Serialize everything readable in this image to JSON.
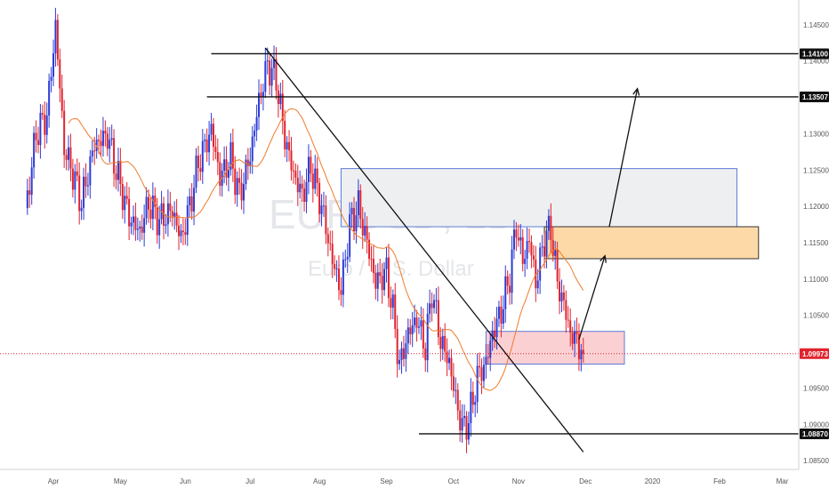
{
  "watermark": {
    "symbol": "EURUSD, 1D",
    "name": "Euro / U.S. Dollar"
  },
  "colors": {
    "up": "#2b3cd6",
    "down": "#e0232e",
    "ma": "#ef7a2a",
    "price_line": "#e0232e",
    "supply_zone": "#fdd9a8",
    "demand_zone": "#fbd0d3",
    "range_zone": "#eeeff1"
  },
  "chart_data": {
    "type": "candlestick",
    "symbol": "EURUSD",
    "timeframe": "1D",
    "title": "Euro / U.S. Dollar",
    "x_labels": [
      "Apr",
      "May",
      "Jun",
      "Jul",
      "Aug",
      "Sep",
      "Oct",
      "Nov",
      "Dec",
      "2020",
      "Feb",
      "Mar"
    ],
    "x_label_days": [
      13,
      44,
      74,
      104,
      136,
      167,
      198,
      228,
      259,
      290,
      321,
      350
    ],
    "y_ticks": [
      "1.14500",
      "1.14000",
      "1.13500",
      "1.13000",
      "1.12500",
      "1.12000",
      "1.11500",
      "1.11000",
      "1.10500",
      "1.10000",
      "1.09500",
      "1.09000",
      "1.08500"
    ],
    "ylim": [
      1.0838,
      1.1484
    ],
    "last_price": "1.09973",
    "levels": [
      {
        "price": 1.141,
        "label": "1.14100",
        "x_from_day": 86
      },
      {
        "price": 1.13507,
        "label": "1.13507",
        "x_from_day": 84
      },
      {
        "price": 1.0887,
        "label": "1.08870",
        "x_from_day": 182
      }
    ],
    "zones": [
      {
        "name": "range",
        "day_from": 146,
        "day_to": 329,
        "price_from": 1.1172,
        "price_to": 1.1252
      },
      {
        "name": "supply",
        "day_from": 240,
        "day_to": 339,
        "price_from": 1.1128,
        "price_to": 1.1172
      },
      {
        "name": "demand",
        "day_from": 213,
        "day_to": 277,
        "price_from": 1.0983,
        "price_to": 1.1028
      }
    ],
    "trendline": {
      "from": {
        "day": 111,
        "price": 1.1418
      },
      "to": {
        "day": 258,
        "price": 1.0862
      }
    },
    "arrows": [
      {
        "from": {
          "day": 256,
          "price": 1.1017
        },
        "to": {
          "day": 268,
          "price": 1.1132
        }
      },
      {
        "from": {
          "day": 270,
          "price": 1.1172
        },
        "to": {
          "day": 283,
          "price": 1.1362
        }
      }
    ],
    "series_keypoints": [
      {
        "day": 0,
        "price": 1.119
      },
      {
        "day": 5,
        "price": 1.13
      },
      {
        "day": 10,
        "price": 1.1325
      },
      {
        "day": 14,
        "price": 1.1448
      },
      {
        "day": 18,
        "price": 1.128
      },
      {
        "day": 22,
        "price": 1.1245
      },
      {
        "day": 26,
        "price": 1.1205
      },
      {
        "day": 32,
        "price": 1.1285
      },
      {
        "day": 38,
        "price": 1.1298
      },
      {
        "day": 42,
        "price": 1.125
      },
      {
        "day": 48,
        "price": 1.1185
      },
      {
        "day": 53,
        "price": 1.1165
      },
      {
        "day": 57,
        "price": 1.1205
      },
      {
        "day": 62,
        "price": 1.118
      },
      {
        "day": 68,
        "price": 1.1195
      },
      {
        "day": 72,
        "price": 1.1155
      },
      {
        "day": 76,
        "price": 1.12
      },
      {
        "day": 80,
        "price": 1.126
      },
      {
        "day": 86,
        "price": 1.1305
      },
      {
        "day": 90,
        "price": 1.124
      },
      {
        "day": 95,
        "price": 1.1265
      },
      {
        "day": 99,
        "price": 1.1215
      },
      {
        "day": 104,
        "price": 1.127
      },
      {
        "day": 108,
        "price": 1.1345
      },
      {
        "day": 112,
        "price": 1.1395
      },
      {
        "day": 116,
        "price": 1.1375
      },
      {
        "day": 120,
        "price": 1.1295
      },
      {
        "day": 124,
        "price": 1.1245
      },
      {
        "day": 128,
        "price": 1.1215
      },
      {
        "day": 132,
        "price": 1.1255
      },
      {
        "day": 137,
        "price": 1.12
      },
      {
        "day": 142,
        "price": 1.1125
      },
      {
        "day": 146,
        "price": 1.1085
      },
      {
        "day": 150,
        "price": 1.1175
      },
      {
        "day": 154,
        "price": 1.12
      },
      {
        "day": 158,
        "price": 1.115
      },
      {
        "day": 162,
        "price": 1.1095
      },
      {
        "day": 167,
        "price": 1.111
      },
      {
        "day": 170,
        "price": 1.1055
      },
      {
        "day": 173,
        "price": 1.098
      },
      {
        "day": 177,
        "price": 1.1025
      },
      {
        "day": 181,
        "price": 1.1045
      },
      {
        "day": 185,
        "price": 1.1005
      },
      {
        "day": 188,
        "price": 1.1085
      },
      {
        "day": 192,
        "price": 1.1015
      },
      {
        "day": 196,
        "price": 1.0985
      },
      {
        "day": 199,
        "price": 1.0935
      },
      {
        "day": 202,
        "price": 1.0895
      },
      {
        "day": 205,
        "price": 1.0905
      },
      {
        "day": 209,
        "price": 1.0965
      },
      {
        "day": 213,
        "price": 1.0985
      },
      {
        "day": 216,
        "price": 1.1025
      },
      {
        "day": 220,
        "price": 1.1055
      },
      {
        "day": 224,
        "price": 1.1105
      },
      {
        "day": 227,
        "price": 1.1175
      },
      {
        "day": 230,
        "price": 1.1125
      },
      {
        "day": 233,
        "price": 1.1155
      },
      {
        "day": 236,
        "price": 1.1095
      },
      {
        "day": 240,
        "price": 1.1155
      },
      {
        "day": 243,
        "price": 1.117
      },
      {
        "day": 246,
        "price": 1.1095
      },
      {
        "day": 249,
        "price": 1.1065
      },
      {
        "day": 252,
        "price": 1.1025
      },
      {
        "day": 255,
        "price": 1.1015
      },
      {
        "day": 258,
        "price": 1.0997
      }
    ]
  }
}
